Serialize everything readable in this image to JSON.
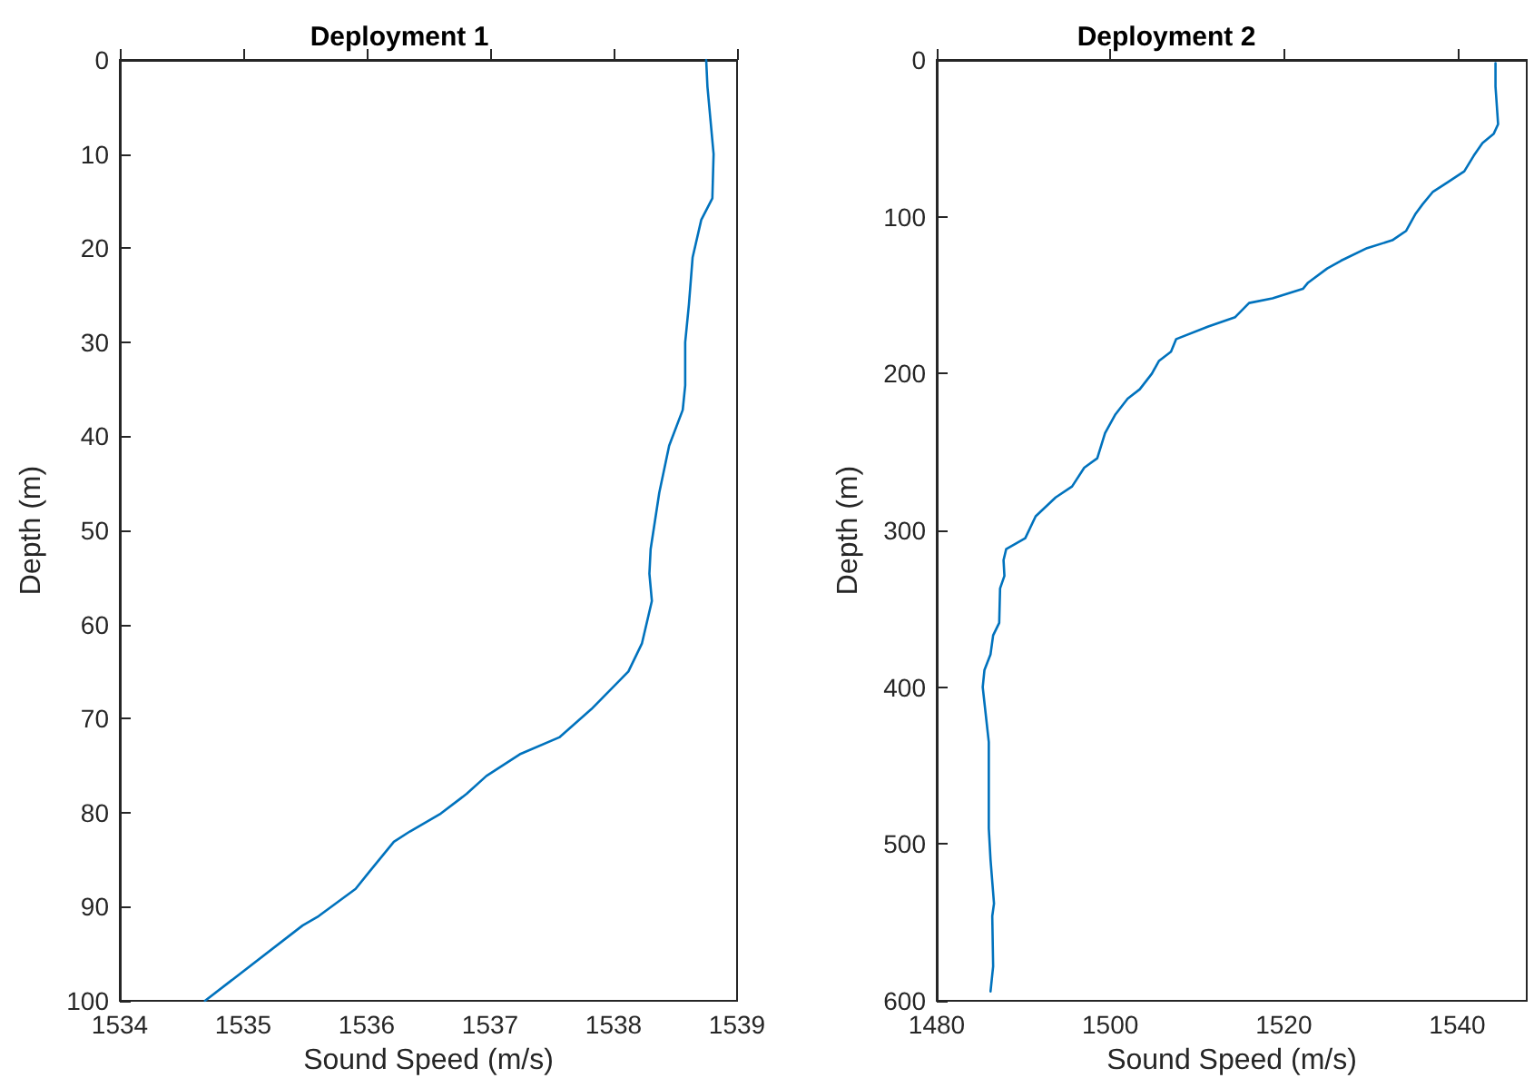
{
  "chart_data": [
    {
      "type": "line",
      "title": "Deployment 1",
      "xlabel": "Sound Speed (m/s)",
      "ylabel": "Depth (m)",
      "xlim": [
        1534,
        1539
      ],
      "xticks": [
        1534,
        1535,
        1536,
        1537,
        1538,
        1539
      ],
      "ylim": [
        100,
        0
      ],
      "yticks": [
        0,
        10,
        20,
        30,
        40,
        50,
        60,
        70,
        80,
        90,
        100
      ],
      "grid": false,
      "marker": "none",
      "line_style": "solid",
      "series": [
        {
          "color": "#0072bd",
          "x": [
            1538.75,
            1538.76,
            1538.81,
            1538.8,
            1538.71,
            1538.64,
            1538.61,
            1538.58,
            1538.58,
            1538.56,
            1538.45,
            1538.37,
            1538.3,
            1538.29,
            1538.31,
            1538.23,
            1538.12,
            1537.97,
            1537.82,
            1537.56,
            1537.24,
            1536.97,
            1536.81,
            1536.6,
            1536.35,
            1536.22,
            1536.02,
            1535.91,
            1535.61,
            1535.48,
            1534.69
          ],
          "values": [
            0,
            2.8,
            10,
            14.7,
            17,
            21,
            26,
            30,
            34.6,
            37.2,
            41,
            46,
            52,
            54.6,
            57.5,
            62,
            65,
            67,
            69,
            72,
            73.8,
            76.1,
            78,
            80.1,
            82,
            83.1,
            86.3,
            88.1,
            91,
            92,
            100
          ]
        }
      ]
    },
    {
      "type": "line",
      "title": "Deployment 2",
      "xlabel": "Sound Speed (m/s)",
      "ylabel": "Depth (m)",
      "xlim": [
        1480,
        1548
      ],
      "xticks": [
        1480,
        1500,
        1520,
        1540
      ],
      "ylim": [
        600,
        0
      ],
      "yticks": [
        0,
        100,
        200,
        300,
        400,
        500,
        600
      ],
      "grid": false,
      "marker": "none",
      "line_style": "solid",
      "series": [
        {
          "color": "#0072bd",
          "x": [
            1544.4,
            1544.4,
            1544.7,
            1544.2,
            1542.9,
            1541.9,
            1540.8,
            1538.9,
            1537.2,
            1536.0,
            1535.2,
            1534.1,
            1532.5,
            1529.6,
            1526.6,
            1525.0,
            1522.8,
            1522.2,
            1518.7,
            1516.0,
            1514.4,
            1511.3,
            1507.6,
            1507.0,
            1505.6,
            1504.8,
            1503.4,
            1502.0,
            1500.6,
            1499.4,
            1498.5,
            1497.0,
            1495.6,
            1493.7,
            1491.4,
            1490.2,
            1488.0,
            1487.7,
            1487.8,
            1487.3,
            1487.2,
            1486.5,
            1486.2,
            1485.5,
            1485.3,
            1486.0,
            1486.0,
            1486.2,
            1486.6,
            1486.4,
            1486.5,
            1486.2
          ],
          "values": [
            2,
            17,
            41,
            47,
            53,
            61,
            71,
            78,
            84,
            92,
            98,
            109,
            115,
            120,
            128,
            133,
            142,
            146,
            152,
            155,
            164,
            170,
            178,
            186,
            192,
            200,
            210,
            216,
            226,
            238,
            254,
            260,
            272,
            279,
            291,
            305,
            312,
            319,
            329,
            337,
            359,
            367,
            379,
            389,
            400,
            435,
            490,
            510,
            538,
            546,
            578,
            594
          ]
        }
      ]
    }
  ]
}
